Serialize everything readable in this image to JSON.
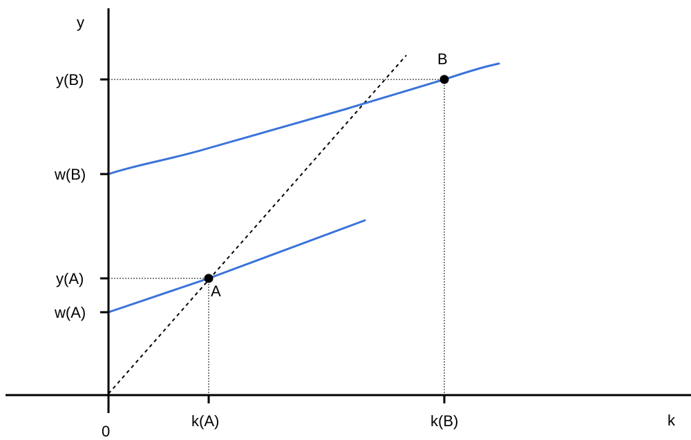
{
  "diagram": {
    "axes": {
      "y_label": "y",
      "x_label": "k",
      "origin_label": "0"
    },
    "y_ticks": {
      "yB": "y(B)",
      "wB": "w(B)",
      "yA": "y(A)",
      "wA": "w(A)"
    },
    "x_ticks": {
      "kA": "k(A)",
      "kB": "k(B)"
    },
    "points": {
      "A": "A",
      "B": "B"
    },
    "colors": {
      "axis": "#000000",
      "curve": "#3a73d9",
      "guide": "#000000"
    }
  }
}
